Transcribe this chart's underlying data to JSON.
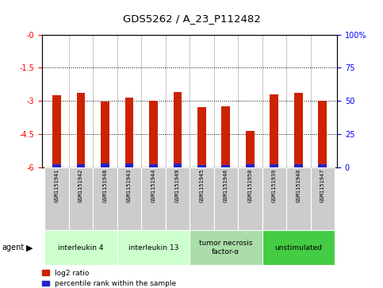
{
  "title": "GDS5262 / A_23_P112482",
  "samples": [
    "GSM1151941",
    "GSM1151942",
    "GSM1151948",
    "GSM1151943",
    "GSM1151944",
    "GSM1151949",
    "GSM1151945",
    "GSM1151946",
    "GSM1151950",
    "GSM1151939",
    "GSM1151940",
    "GSM1151947"
  ],
  "log2_ratios": [
    -2.75,
    -2.65,
    -3.05,
    -2.85,
    -3.0,
    -2.6,
    -3.3,
    -3.25,
    -4.35,
    -2.7,
    -2.65,
    -3.0
  ],
  "percentile_ranks_height": [
    0.12,
    0.14,
    0.16,
    0.16,
    0.14,
    0.16,
    0.1,
    0.1,
    0.14,
    0.14,
    0.14,
    0.14
  ],
  "bar_bottom": -6.0,
  "groups": [
    {
      "label": "interleukin 4",
      "start": 0,
      "end": 3,
      "color": "#ccffcc"
    },
    {
      "label": "interleukin 13",
      "start": 3,
      "end": 6,
      "color": "#ccffcc"
    },
    {
      "label": "tumor necrosis\nfactor-α",
      "start": 6,
      "end": 9,
      "color": "#aaddaa"
    },
    {
      "label": "unstimulated",
      "start": 9,
      "end": 12,
      "color": "#44cc44"
    }
  ],
  "ylim_left": [
    -6.0,
    0.0
  ],
  "ylim_right": [
    0,
    100
  ],
  "yticks_left": [
    -6,
    -4.5,
    -3,
    -1.5,
    0
  ],
  "ytick_labels_left": [
    "-6",
    "-4.5",
    "-3",
    "-1.5",
    "-0"
  ],
  "yticks_right": [
    0,
    25,
    50,
    75,
    100
  ],
  "ytick_labels_right": [
    "0",
    "25",
    "50",
    "75",
    "100%"
  ],
  "bar_color_red": "#cc2200",
  "bar_color_blue": "#2222cc",
  "background_plot": "white",
  "background_sample": "#cccccc",
  "legend_red_label": "log2 ratio",
  "legend_blue_label": "percentile rank within the sample",
  "bar_width": 0.35
}
